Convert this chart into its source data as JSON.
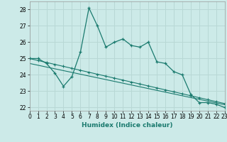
{
  "xlabel": "Humidex (Indice chaleur)",
  "background_color": "#cceae8",
  "grid_color": "#b8d8d5",
  "line_color": "#1a7a6e",
  "x_values": [
    0,
    1,
    2,
    3,
    4,
    5,
    6,
    7,
    8,
    9,
    10,
    11,
    12,
    13,
    14,
    15,
    16,
    17,
    18,
    19,
    20,
    21,
    22,
    23
  ],
  "y_main": [
    25.0,
    25.0,
    24.7,
    24.1,
    23.3,
    23.9,
    25.4,
    28.1,
    27.0,
    25.7,
    26.0,
    26.2,
    25.8,
    25.7,
    26.0,
    24.8,
    24.7,
    24.2,
    24.0,
    22.8,
    22.3,
    22.3,
    22.2,
    22.0
  ],
  "y_reg1": [
    25.0,
    24.88,
    24.76,
    24.64,
    24.52,
    24.4,
    24.28,
    24.16,
    24.04,
    23.92,
    23.8,
    23.68,
    23.56,
    23.44,
    23.32,
    23.2,
    23.08,
    22.96,
    22.84,
    22.72,
    22.6,
    22.48,
    22.36,
    22.24
  ],
  "y_reg2": [
    24.7,
    24.59,
    24.48,
    24.37,
    24.26,
    24.15,
    24.04,
    23.93,
    23.82,
    23.71,
    23.6,
    23.49,
    23.38,
    23.27,
    23.16,
    23.05,
    22.94,
    22.83,
    22.72,
    22.61,
    22.5,
    22.39,
    22.28,
    22.17
  ],
  "ylim": [
    21.8,
    28.5
  ],
  "xlim": [
    0,
    23
  ],
  "yticks": [
    22,
    23,
    24,
    25,
    26,
    27,
    28
  ],
  "xticks": [
    0,
    1,
    2,
    3,
    4,
    5,
    6,
    7,
    8,
    9,
    10,
    11,
    12,
    13,
    14,
    15,
    16,
    17,
    18,
    19,
    20,
    21,
    22,
    23
  ]
}
